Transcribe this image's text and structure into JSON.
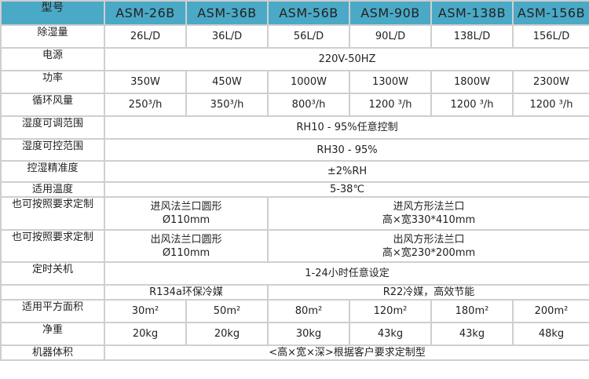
{
  "header": {
    "label": "型号",
    "models": [
      "ASM-26B",
      "ASM-36B",
      "ASM-56B",
      "ASM-90B",
      "ASM-138B",
      "ASM-156B"
    ]
  },
  "rows": [
    {
      "label": "除湿量",
      "values": [
        "26L/D",
        "36L/D",
        "56L/D",
        "90L/D",
        "138L/D",
        "156L/D"
      ]
    },
    {
      "label": "电源",
      "value": "220V-50HZ"
    },
    {
      "label": "功率",
      "values": [
        "350W",
        "450W",
        "1000W",
        "1300W",
        "1800W",
        "2300W"
      ]
    },
    {
      "label": "循环风量",
      "values": [
        "250³/h",
        "350³/h",
        "800³/h",
        "1200 ³/h",
        "1200 ³/h",
        "1200 ³/h"
      ]
    },
    {
      "label": "湿度可调范围",
      "value": "RH10 - 95%任意控制"
    },
    {
      "label": "湿度可控范围",
      "value": "RH30 - 95%"
    },
    {
      "label": "控湿精准度",
      "value": "±2%RH"
    },
    {
      "label": "适用温度",
      "value": "5-38℃"
    },
    {
      "label": "也可按照要求定制",
      "left": [
        "进风法兰口圆形",
        "Ø110mm"
      ],
      "right": [
        "进风方形法兰口",
        "高×宽330*410mm"
      ]
    },
    {
      "label": "也可按照要求定制",
      "left": [
        "出风法兰口圆形",
        "Ø110mm"
      ],
      "right": [
        "出风方形法兰口",
        "高×宽230*200mm"
      ]
    },
    {
      "label": "定时关机",
      "value": "1-24小时任意设定"
    },
    {
      "label": "",
      "left": [
        "R134a环保冷媒"
      ],
      "right": [
        "R22冷媒，高效节能"
      ]
    },
    {
      "label": "适用平方面积",
      "values": [
        "30m²",
        "50m²",
        "80m²",
        "120m²",
        "180m²",
        "200m²"
      ]
    },
    {
      "label": "净重",
      "values": [
        "20kg",
        "20kg",
        "30kg",
        "43kg",
        "43kg",
        "48kg"
      ]
    },
    {
      "label": "机器体积",
      "value": "<高×宽×深>根据客户要求定制型"
    }
  ]
}
